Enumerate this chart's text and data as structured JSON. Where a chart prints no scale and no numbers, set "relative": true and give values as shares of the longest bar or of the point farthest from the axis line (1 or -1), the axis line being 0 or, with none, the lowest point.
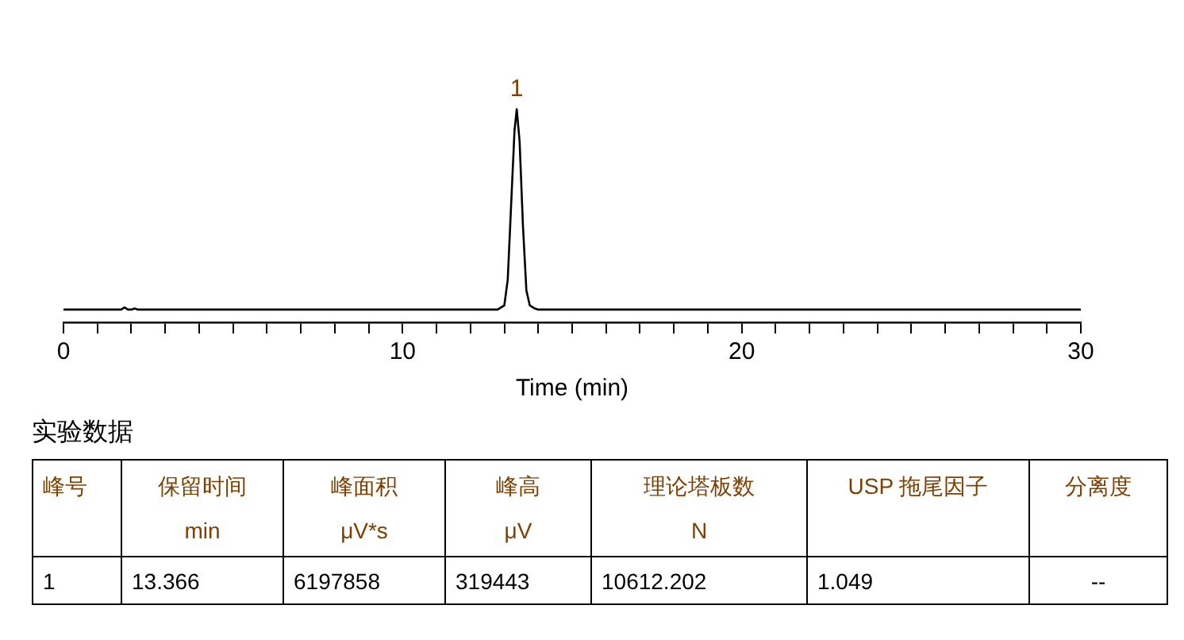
{
  "chart_data": [
    {
      "type": "line",
      "relative": true,
      "xlabel": "Time (min)",
      "x": [
        0,
        1.7,
        1.8,
        1.9,
        2.0,
        2.1,
        2.2,
        12.8,
        13.0,
        13.1,
        13.2,
        13.3,
        13.366,
        13.45,
        13.55,
        13.65,
        13.75,
        13.9,
        14.0,
        30
      ],
      "series": [
        {
          "color": "#000000",
          "values": [
            0.06,
            0.06,
            0.07,
            0.06,
            0.06,
            0.065,
            0.06,
            0.06,
            0.08,
            0.2,
            0.55,
            0.9,
            1,
            0.85,
            0.45,
            0.15,
            0.08,
            0.065,
            0.06,
            0.06
          ]
        }
      ],
      "xlim": [
        0,
        30
      ],
      "xticks": [
        0,
        {
          "value": 1,
          "label": null
        },
        {
          "value": 2,
          "label": null
        },
        {
          "value": 3,
          "label": null
        },
        {
          "value": 4,
          "label": null
        },
        {
          "value": 5,
          "label": null
        },
        {
          "value": 6,
          "label": null
        },
        {
          "value": 7,
          "label": null
        },
        {
          "value": 8,
          "label": null
        },
        {
          "value": 9,
          "label": null
        },
        10,
        {
          "value": 11,
          "label": null
        },
        {
          "value": 12,
          "label": null
        },
        {
          "value": 13,
          "label": null
        },
        {
          "value": 14,
          "label": null
        },
        {
          "value": 15,
          "label": null
        },
        {
          "value": 16,
          "label": null
        },
        {
          "value": 17,
          "label": null
        },
        {
          "value": 18,
          "label": null
        },
        {
          "value": 19,
          "label": null
        },
        20,
        {
          "value": 21,
          "label": null
        },
        {
          "value": 22,
          "label": null
        },
        {
          "value": 23,
          "label": null
        },
        {
          "value": 24,
          "label": null
        },
        {
          "value": 25,
          "label": null
        },
        {
          "value": 26,
          "label": null
        },
        {
          "value": 27,
          "label": null
        },
        {
          "value": 28,
          "label": null
        },
        {
          "value": 29,
          "label": null
        },
        30
      ],
      "annotations": [
        {
          "text": "1",
          "x": 13.366,
          "y": 1
        }
      ],
      "grid": false,
      "legend": false,
      "marker": "none",
      "line_style": "solid"
    },
    {
      "type": "other",
      "title": "实验数据",
      "categories": [
        "峰号",
        "保留时间\nmin",
        "峰面积\nμV*s",
        "峰高\nμV",
        "理论塔板数\nN",
        "USP 拖尾因子",
        "分离度"
      ],
      "value_labels": [
        "1",
        "13.366",
        "6197858",
        "319443",
        "10612.202",
        "1.049",
        "--"
      ]
    }
  ]
}
